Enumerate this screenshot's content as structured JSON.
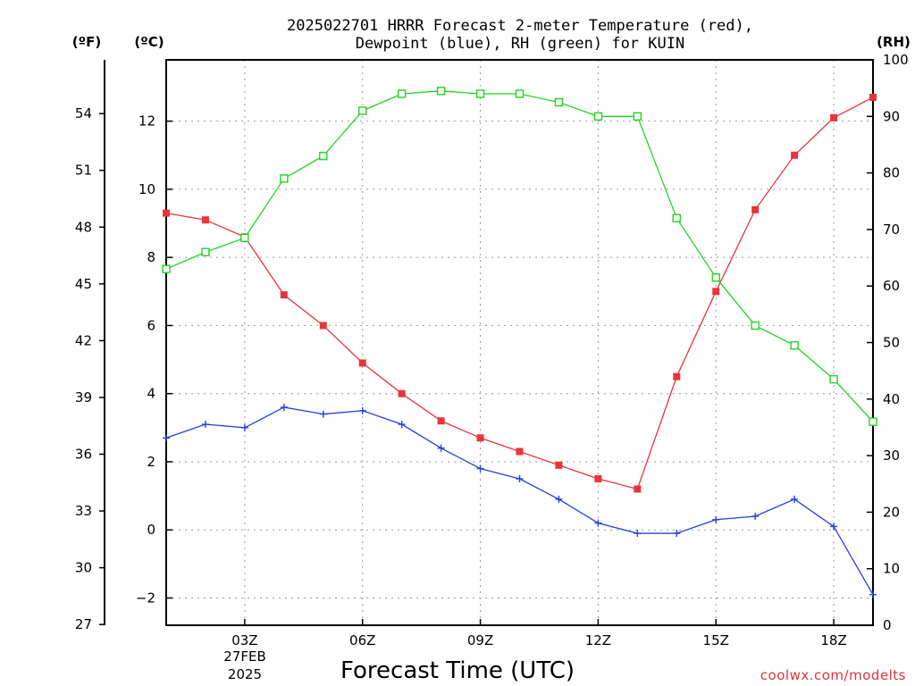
{
  "chart_data": {
    "type": "line",
    "title": [
      "2025022701 HRRR Forecast 2-meter Temperature (red),",
      "Dewpoint (blue), RH (green) for KUIN"
    ],
    "xlabel": "Forecast Time (UTC)",
    "credit": "coolwx.com/modelts",
    "date_label": [
      "27FEB",
      "2025"
    ],
    "left_axis_c": {
      "unit": "(ºC)",
      "range": [
        -2.8,
        13.8
      ],
      "ticks": [
        -2,
        0,
        2,
        4,
        6,
        8,
        10,
        12
      ],
      "tick_labels": [
        "−2",
        "0",
        "2",
        "4",
        "6",
        "8",
        "10",
        "12"
      ]
    },
    "left_axis_f": {
      "unit": "(ºF)",
      "ticks": [
        27,
        30,
        33,
        36,
        39,
        42,
        45,
        48,
        51,
        54
      ]
    },
    "right_axis": {
      "unit": "(RH)",
      "range": [
        0,
        100
      ],
      "ticks": [
        0,
        10,
        20,
        30,
        40,
        50,
        60,
        70,
        80,
        90,
        100
      ]
    },
    "x": {
      "unit": "forecast hour (UTC)",
      "range": [
        1,
        19
      ],
      "ticks": [
        3,
        6,
        9,
        12,
        15,
        18
      ],
      "tick_labels": [
        "03Z",
        "06Z",
        "09Z",
        "12Z",
        "15Z",
        "18Z"
      ]
    },
    "grid": true,
    "series": [
      {
        "name": "Temperature",
        "axis": "left_c",
        "color": "#e8343a",
        "marker": "filled-square",
        "x": [
          1,
          2,
          3,
          4,
          5,
          6,
          7,
          8,
          9,
          10,
          11,
          12,
          13,
          14,
          15,
          16,
          17,
          18,
          19
        ],
        "values": [
          9.3,
          9.1,
          8.6,
          6.9,
          6.0,
          4.9,
          4.0,
          3.2,
          2.7,
          2.3,
          1.9,
          1.5,
          1.2,
          4.5,
          7.0,
          9.4,
          11.0,
          12.1,
          12.7
        ]
      },
      {
        "name": "Dewpoint",
        "axis": "left_c",
        "color": "#2540e0",
        "marker": "plus",
        "x": [
          1,
          2,
          3,
          4,
          5,
          6,
          7,
          8,
          9,
          10,
          11,
          12,
          13,
          14,
          15,
          16,
          17,
          18,
          19
        ],
        "values": [
          2.7,
          3.1,
          3.0,
          3.6,
          3.4,
          3.5,
          3.1,
          2.4,
          1.8,
          1.5,
          0.9,
          0.2,
          -0.1,
          -0.1,
          0.3,
          0.4,
          0.9,
          0.1,
          -1.9
        ]
      },
      {
        "name": "RH",
        "axis": "right",
        "color": "#22d322",
        "marker": "open-square",
        "x": [
          1,
          2,
          3,
          4,
          5,
          6,
          7,
          8,
          9,
          10,
          11,
          12,
          13,
          14,
          15,
          16,
          17,
          18,
          19
        ],
        "values": [
          63,
          66,
          68.5,
          79,
          83,
          91,
          94,
          94.5,
          94,
          94,
          92.5,
          90,
          90,
          72,
          61.5,
          53,
          49.5,
          43.5,
          36
        ]
      }
    ]
  }
}
